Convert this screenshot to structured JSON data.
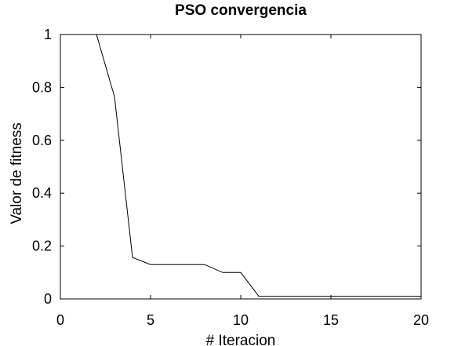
{
  "chart_data": {
    "type": "line",
    "title": "PSO convergencia",
    "xlabel": "# Iteracion",
    "ylabel": "Valor de fitness",
    "xlim": [
      0,
      20
    ],
    "ylim": [
      0,
      1
    ],
    "xticks": [
      0,
      5,
      10,
      15,
      20
    ],
    "yticks": [
      0,
      0.2,
      0.4,
      0.6,
      0.8,
      1
    ],
    "xtick_labels": [
      "0",
      "5",
      "10",
      "15",
      "20"
    ],
    "ytick_labels": [
      "0",
      "0.2",
      "0.4",
      "0.6",
      "0.8",
      "1"
    ],
    "grid": false,
    "line_color": "#000000",
    "series": [
      {
        "x": [
          1,
          2,
          3,
          4,
          5,
          6,
          7,
          8,
          9,
          10,
          11,
          12,
          13,
          14,
          15,
          16,
          17,
          18,
          19,
          20
        ],
        "values": [
          1.0,
          1.0,
          0.765,
          0.157,
          0.13,
          0.13,
          0.13,
          0.13,
          0.1,
          0.1,
          0.01,
          0.01,
          0.01,
          0.01,
          0.01,
          0.01,
          0.01,
          0.01,
          0.01,
          0.01
        ]
      }
    ]
  }
}
